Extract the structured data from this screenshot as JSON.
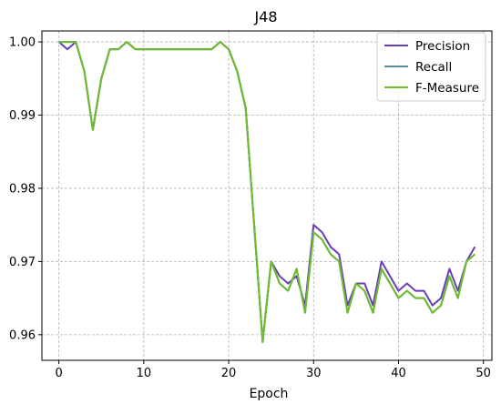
{
  "chart_data": {
    "type": "line",
    "title": "J48",
    "xlabel": "Epoch",
    "ylabel": "",
    "xlim": [
      -2,
      51
    ],
    "ylim": [
      0.9565,
      1.0015
    ],
    "xticks": [
      0,
      10,
      20,
      30,
      40,
      50
    ],
    "yticks": [
      0.96,
      0.97,
      0.98,
      0.99,
      1.0
    ],
    "ytick_labels": [
      "0.96",
      "0.97",
      "0.98",
      "0.99",
      "1.00"
    ],
    "grid": true,
    "legend": "top-right",
    "x": [
      0,
      1,
      2,
      3,
      4,
      5,
      6,
      7,
      8,
      9,
      10,
      11,
      12,
      13,
      14,
      15,
      16,
      17,
      18,
      19,
      20,
      21,
      22,
      23,
      24,
      25,
      26,
      27,
      28,
      29,
      30,
      31,
      32,
      33,
      34,
      35,
      36,
      37,
      38,
      39,
      40,
      41,
      42,
      43,
      44,
      45,
      46,
      47,
      48,
      49
    ],
    "series": [
      {
        "name": "Precision",
        "color": "#6a3db8",
        "values": [
          1.0,
          0.999,
          1.0,
          0.996,
          0.988,
          0.995,
          0.999,
          0.999,
          1.0,
          0.999,
          0.999,
          0.999,
          0.999,
          0.999,
          0.999,
          0.999,
          0.999,
          0.999,
          0.999,
          1.0,
          0.999,
          0.996,
          0.991,
          0.975,
          0.959,
          0.97,
          0.968,
          0.967,
          0.968,
          0.964,
          0.975,
          0.974,
          0.972,
          0.971,
          0.964,
          0.967,
          0.967,
          0.964,
          0.97,
          0.968,
          0.966,
          0.967,
          0.966,
          0.966,
          0.964,
          0.965,
          0.969,
          0.966,
          0.97,
          0.972
        ]
      },
      {
        "name": "Recall",
        "color": "#5b8fa0",
        "values": [
          1.0,
          1.0,
          1.0,
          0.996,
          0.988,
          0.995,
          0.999,
          0.999,
          1.0,
          0.999,
          0.999,
          0.999,
          0.999,
          0.999,
          0.999,
          0.999,
          0.999,
          0.999,
          0.999,
          1.0,
          0.999,
          0.996,
          0.991,
          0.975,
          0.959,
          0.97,
          0.967,
          0.966,
          0.969,
          0.963,
          0.974,
          0.973,
          0.971,
          0.97,
          0.963,
          0.967,
          0.966,
          0.963,
          0.969,
          0.967,
          0.965,
          0.966,
          0.965,
          0.965,
          0.963,
          0.964,
          0.968,
          0.965,
          0.97,
          0.971
        ]
      },
      {
        "name": "F-Measure",
        "color": "#6cbd28",
        "values": [
          1.0,
          1.0,
          1.0,
          0.996,
          0.988,
          0.995,
          0.999,
          0.999,
          1.0,
          0.999,
          0.999,
          0.999,
          0.999,
          0.999,
          0.999,
          0.999,
          0.999,
          0.999,
          0.999,
          1.0,
          0.999,
          0.996,
          0.991,
          0.975,
          0.959,
          0.97,
          0.967,
          0.966,
          0.969,
          0.963,
          0.974,
          0.973,
          0.971,
          0.97,
          0.963,
          0.967,
          0.966,
          0.963,
          0.969,
          0.967,
          0.965,
          0.966,
          0.965,
          0.965,
          0.963,
          0.964,
          0.968,
          0.965,
          0.97,
          0.971
        ]
      }
    ]
  }
}
